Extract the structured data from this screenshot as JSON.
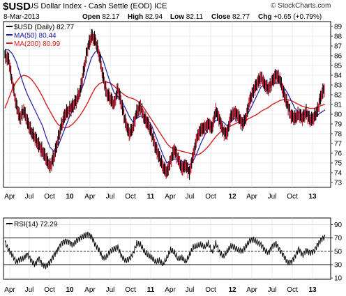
{
  "header": {
    "symbol": "$USD",
    "name": "US Dollar Index - Cash Settle (EOD) ICE",
    "site": "© StockCharts.com",
    "date": "8-Mar-2013",
    "open_label": "Open",
    "open": "82.17",
    "high_label": "High",
    "high": "82.94",
    "low_label": "Low",
    "low": "82.11",
    "close_label": "Close",
    "close": "82.77",
    "chg_label": "Chg",
    "chg": "+0.65 (+0.79%)"
  },
  "colors": {
    "price": "#000000",
    "ma50": "#1a1aa6",
    "ma200": "#d62020",
    "down": "#c8102e",
    "grid": "#d9d9d9"
  },
  "chart_data": [
    {
      "type": "line",
      "panel": "price",
      "legend": [
        {
          "name": "$USD (Daily)",
          "value": "82.77",
          "color": "#000000"
        },
        {
          "name": "MA(50)",
          "value": "80.44",
          "color": "#1a1aa6"
        },
        {
          "name": "MA(200)",
          "value": "80.99",
          "color": "#d62020"
        }
      ],
      "legend_position": "top-left",
      "ylim": [
        72.5,
        89.5
      ],
      "yticks": [
        73,
        74,
        75,
        76,
        77,
        78,
        79,
        80,
        81,
        82,
        83,
        84,
        85,
        86,
        87,
        88,
        89
      ],
      "xticks": [
        "Apr",
        "Jul",
        "Oct",
        "10",
        "Apr",
        "Jul",
        "Oct",
        "11",
        "Apr",
        "Jul",
        "Oct",
        "12",
        "Apr",
        "Jul",
        "Oct",
        "13"
      ],
      "grid": true,
      "series": [
        {
          "name": "$USD (Daily)",
          "color": "#000000",
          "values": [
            86.0,
            85.6,
            83.2,
            81.0,
            79.6,
            80.4,
            79.2,
            78.2,
            77.6,
            76.8,
            76.2,
            75.4,
            74.6,
            75.6,
            77.2,
            78.8,
            80.0,
            80.4,
            80.8,
            81.4,
            82.4,
            84.6,
            86.8,
            88.0,
            87.6,
            86.2,
            84.0,
            82.2,
            81.6,
            81.0,
            82.6,
            81.0,
            79.2,
            78.0,
            78.6,
            80.2,
            80.8,
            79.6,
            79.0,
            78.0,
            76.6,
            75.6,
            74.6,
            74.0,
            75.2,
            76.4,
            75.4,
            74.4,
            74.8,
            74.0,
            75.8,
            77.6,
            78.4,
            78.6,
            79.0,
            78.6,
            80.4,
            79.4,
            78.2,
            78.0,
            79.8,
            80.2,
            79.8,
            79.0,
            79.6,
            81.4,
            82.4,
            83.2,
            83.8,
            83.0,
            82.6,
            83.4,
            84.0,
            83.6,
            82.2,
            81.0,
            79.8,
            79.6,
            80.0,
            79.6,
            80.2,
            79.4,
            79.6,
            80.4,
            82.0,
            82.77
          ]
        },
        {
          "name": "MA(50)",
          "color": "#1a1aa6",
          "values": [
            86.6,
            86.6,
            86.2,
            85.4,
            84.2,
            83.0,
            82.0,
            81.2,
            80.4,
            79.6,
            78.8,
            77.6,
            76.6,
            76.2,
            76.6,
            77.6,
            78.6,
            79.6,
            80.4,
            81.2,
            82.2,
            83.2,
            84.6,
            85.8,
            86.4,
            86.4,
            85.6,
            84.4,
            83.2,
            82.2,
            81.8,
            81.4,
            80.6,
            79.8,
            79.2,
            79.6,
            79.8,
            79.8,
            79.4,
            78.8,
            77.8,
            76.8,
            75.8,
            75.0,
            75.2,
            75.4,
            75.4,
            75.2,
            75.0,
            74.8,
            75.2,
            76.0,
            77.0,
            77.8,
            78.6,
            78.8,
            79.4,
            79.4,
            79.2,
            78.8,
            79.2,
            79.6,
            79.6,
            79.6,
            79.8,
            80.4,
            81.2,
            82.0,
            82.8,
            83.0,
            83.0,
            83.0,
            83.2,
            83.2,
            82.8,
            82.2,
            81.4,
            80.6,
            80.2,
            80.0,
            80.0,
            79.9,
            79.8,
            79.9,
            80.2,
            80.44
          ]
        },
        {
          "name": "MA(200)",
          "color": "#d62020",
          "values": [
            80.6,
            81.6,
            82.6,
            83.3,
            83.8,
            84.0,
            83.9,
            83.6,
            83.1,
            82.5,
            81.8,
            81.0,
            80.3,
            79.6,
            79.0,
            78.7,
            78.6,
            78.7,
            79.0,
            79.4,
            79.9,
            80.5,
            81.2,
            82.0,
            82.7,
            83.1,
            83.3,
            83.3,
            83.2,
            82.9,
            82.5,
            82.2,
            81.9,
            81.7,
            81.6,
            81.4,
            81.1,
            80.6,
            80.0,
            79.4,
            78.8,
            78.2,
            77.6,
            77.0,
            76.6,
            76.4,
            76.3,
            76.2,
            76.1,
            76.0,
            75.9,
            75.8,
            76.0,
            76.3,
            76.7,
            77.2,
            77.7,
            78.1,
            78.4,
            78.6,
            78.8,
            79.0,
            79.2,
            79.3,
            79.4,
            79.6,
            79.8,
            80.0,
            80.3,
            80.5,
            80.7,
            81.0,
            81.2,
            81.4,
            81.5,
            81.5,
            81.4,
            81.2,
            81.0,
            80.8,
            80.7,
            80.6,
            80.6,
            80.7,
            80.9,
            80.99
          ]
        }
      ]
    },
    {
      "type": "line",
      "panel": "rsi",
      "legend": [
        {
          "name": "RSI(14)",
          "value": "72.29",
          "color": "#000000"
        }
      ],
      "legend_position": "top-left",
      "ylim": [
        8,
        100
      ],
      "yticks": [
        10,
        30,
        50,
        70,
        90
      ],
      "reference_lines": [
        30,
        50,
        70
      ],
      "xticks": [
        "Apr",
        "Jul",
        "Oct",
        "10",
        "Apr",
        "Jul",
        "Oct",
        "11",
        "Apr",
        "Jul",
        "Oct",
        "12",
        "Apr",
        "Jul",
        "Oct",
        "13"
      ],
      "series": [
        {
          "name": "RSI(14)",
          "color": "#000000",
          "values": [
            64,
            52,
            44,
            34,
            38,
            40,
            46,
            36,
            30,
            40,
            30,
            28,
            34,
            44,
            52,
            62,
            66,
            64,
            60,
            66,
            70,
            74,
            76,
            72,
            60,
            52,
            40,
            42,
            50,
            54,
            56,
            42,
            36,
            38,
            46,
            62,
            60,
            50,
            44,
            40,
            34,
            36,
            30,
            40,
            52,
            48,
            38,
            40,
            34,
            44,
            56,
            58,
            60,
            56,
            62,
            48,
            62,
            48,
            42,
            50,
            58,
            56,
            52,
            50,
            58,
            66,
            68,
            64,
            60,
            52,
            48,
            58,
            62,
            52,
            44,
            34,
            34,
            42,
            54,
            44,
            52,
            48,
            50,
            60,
            68,
            72.29
          ]
        }
      ]
    }
  ]
}
